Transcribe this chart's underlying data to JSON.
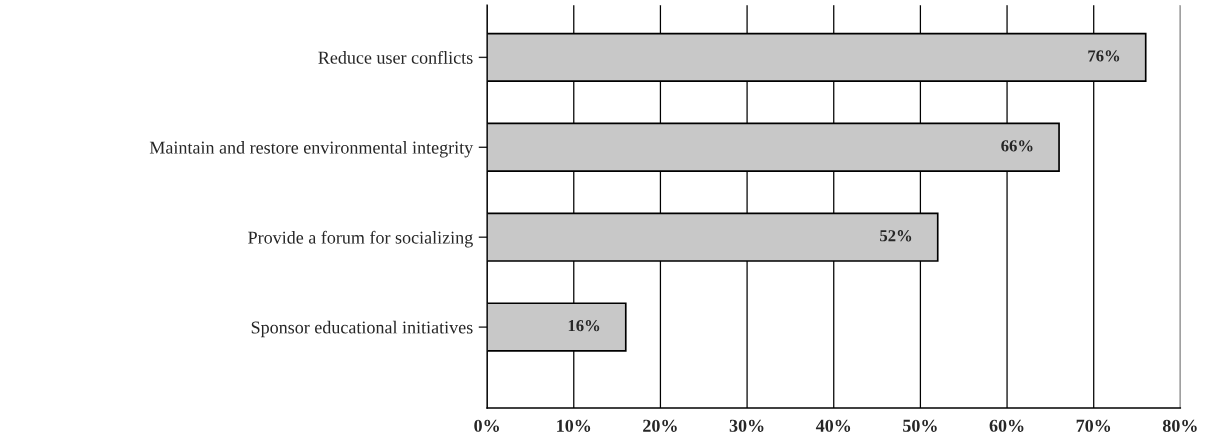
{
  "chart_data": {
    "type": "bar",
    "orientation": "horizontal",
    "categories": [
      "Reduce user conflicts",
      "Maintain and restore environmental integrity",
      "Provide a forum for socializing",
      "Sponsor educational initiatives"
    ],
    "values": [
      76,
      66,
      52,
      16
    ],
    "value_labels": [
      "76%",
      "66%",
      "52%",
      "16%"
    ],
    "color": "#c8c8c8",
    "xlim": [
      0,
      80
    ],
    "xticks": [
      {
        "value": 0,
        "label": "0%"
      },
      {
        "value": 10,
        "label": "10%"
      },
      {
        "value": 20,
        "label": "20%"
      },
      {
        "value": 30,
        "label": "30%"
      },
      {
        "value": 40,
        "label": "40%"
      },
      {
        "value": 50,
        "label": "50%"
      },
      {
        "value": 60,
        "label": "60%"
      },
      {
        "value": 70,
        "label": "70%"
      },
      {
        "value": 80,
        "label": "80%"
      }
    ],
    "grid": "x"
  }
}
